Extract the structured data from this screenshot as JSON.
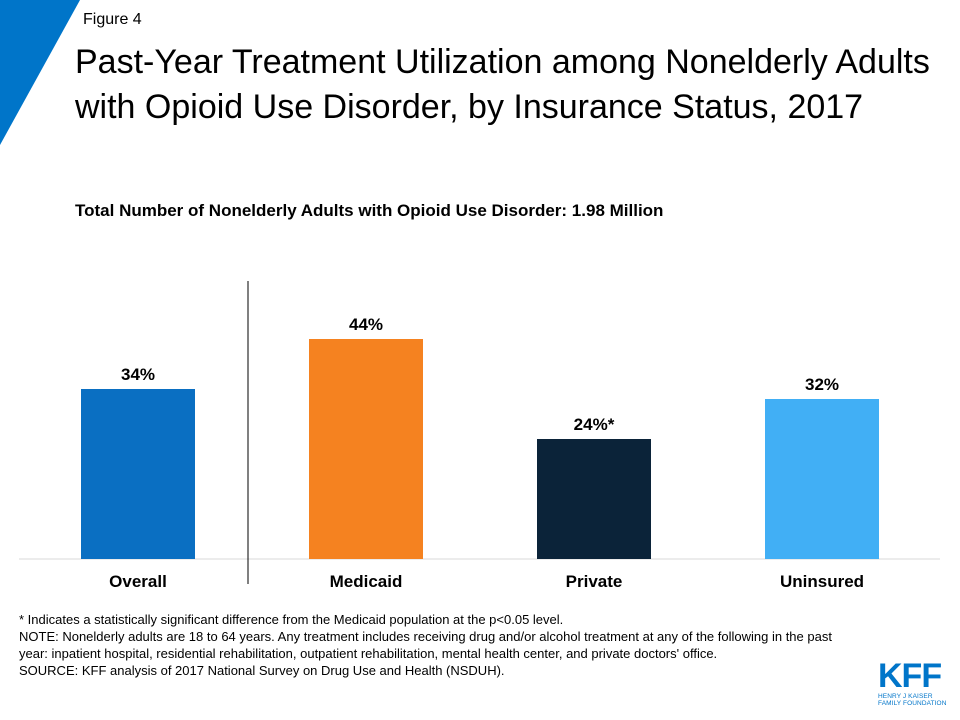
{
  "figure_label": "Figure 4",
  "title": "Past-Year Treatment Utilization among Nonelderly Adults with Opioid Use Disorder, by Insurance Status, 2017",
  "subtitle": "Total Number of Nonelderly Adults with Opioid Use Disorder: 1.98 Million",
  "colors": {
    "accent": "#0075c9",
    "overall": "#0a6fc2",
    "medicaid": "#f58220",
    "private": "#0b2339",
    "uninsured": "#41aff5"
  },
  "chart_data": {
    "type": "bar",
    "title": "Past-Year Treatment Utilization among Nonelderly Adults with Opioid Use Disorder, by Insurance Status, 2017",
    "xlabel": "",
    "ylabel": "",
    "ylim": [
      0,
      55
    ],
    "categories": [
      "Overall",
      "Medicaid",
      "Private",
      "Uninsured"
    ],
    "values": [
      34,
      44,
      24,
      32
    ],
    "value_labels": [
      "34%",
      "44%",
      "24%*",
      "32%"
    ],
    "colors": [
      "#0a6fc2",
      "#f58220",
      "#0b2339",
      "#41aff5"
    ],
    "grid": false
  },
  "notes": [
    "* Indicates a statistically significant difference from the Medicaid population at the p<0.05 level.",
    "NOTE: Nonelderly adults are 18 to 64 years. Any treatment includes receiving drug and/or alcohol treatment at any of the following in the past year: inpatient hospital, residential rehabilitation, outpatient rehabilitation, mental health center, and private doctors' office.",
    "SOURCE: KFF analysis of 2017 National Survey on Drug Use and Health (NSDUH)."
  ],
  "logo": {
    "mark": "KFF",
    "line1": "HENRY J KAISER",
    "line2": "FAMILY FOUNDATION"
  }
}
